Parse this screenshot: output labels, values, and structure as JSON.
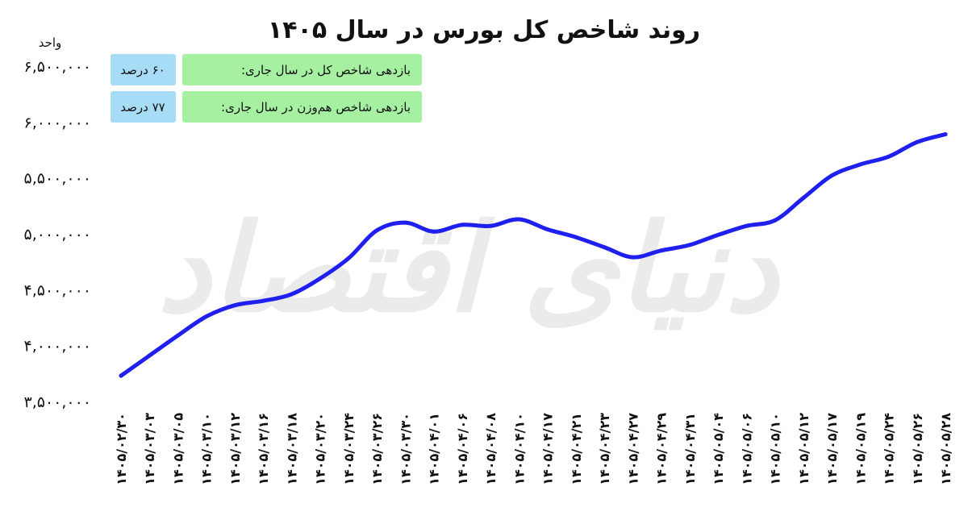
{
  "chart_data": {
    "type": "line",
    "title": "روند شاخص کل بورس در سال ۱۴۰۵",
    "ylabel": "واحد",
    "ylim": [
      3500000,
      6500000
    ],
    "yticks": [
      6500000,
      6000000,
      5500000,
      5000000,
      4500000,
      4000000,
      3500000
    ],
    "ytick_labels": [
      "۶,۵۰۰,۰۰۰",
      "۶,۰۰۰,۰۰۰",
      "۵,۵۰۰,۰۰۰",
      "۵,۰۰۰,۰۰۰",
      "۴,۵۰۰,۰۰۰",
      "۴,۰۰۰,۰۰۰",
      "۳,۵۰۰,۰۰۰"
    ],
    "categories": [
      "۱۴۰۵/۰۲/۳۰",
      "۱۴۰۵/۰۳/۰۳",
      "۱۴۰۵/۰۳/۰۵",
      "۱۴۰۵/۰۳/۱۰",
      "۱۴۰۵/۰۳/۱۲",
      "۱۴۰۵/۰۳/۱۶",
      "۱۴۰۵/۰۳/۱۸",
      "۱۴۰۵/۰۳/۲۰",
      "۱۴۰۵/۰۳/۲۴",
      "۱۴۰۵/۰۳/۲۶",
      "۱۴۰۵/۰۳/۳۰",
      "۱۴۰۵/۰۴/۰۱",
      "۱۴۰۵/۰۴/۰۶",
      "۱۴۰۵/۰۴/۰۸",
      "۱۴۰۵/۰۴/۱۰",
      "۱۴۰۵/۰۴/۱۷",
      "۱۴۰۵/۰۴/۲۱",
      "۱۴۰۵/۰۴/۲۳",
      "۱۴۰۵/۰۴/۲۷",
      "۱۴۰۵/۰۴/۲۹",
      "۱۴۰۵/۰۴/۳۱",
      "۱۴۰۵/۰۵/۰۴",
      "۱۴۰۵/۰۵/۰۶",
      "۱۴۰۵/۰۵/۱۰",
      "۱۴۰۵/۰۵/۱۲",
      "۱۴۰۵/۰۵/۱۷",
      "۱۴۰۵/۰۵/۱۹",
      "۱۴۰۵/۰۵/۲۴",
      "۱۴۰۵/۰۵/۲۶",
      "۱۴۰۵/۰۵/۲۸"
    ],
    "series": [
      {
        "color": "#1f1ff0",
        "values": [
          3730000,
          3910000,
          4090000,
          4260000,
          4360000,
          4400000,
          4460000,
          4600000,
          4780000,
          5030000,
          5100000,
          5020000,
          5080000,
          5070000,
          5130000,
          5040000,
          4970000,
          4880000,
          4790000,
          4850000,
          4900000,
          4990000,
          5070000,
          5120000,
          5320000,
          5520000,
          5620000,
          5690000,
          5820000,
          5890000
        ]
      }
    ],
    "grid": false,
    "legend": "none"
  },
  "info_boxes": [
    {
      "label": "بازدهی شاخص کل در سال جاری:",
      "value": "۶۰ درصد"
    },
    {
      "label": "بازدهی شاخص هم‌وزن در سال جاری:",
      "value": "۷۷ درصد"
    }
  ],
  "colors": {
    "line": "#1f1ff0",
    "label_box": "#a6f0a1",
    "value_box": "#a6dcf5",
    "watermark": "#dcdcdc"
  },
  "watermark": "دنیای اقتصاد"
}
